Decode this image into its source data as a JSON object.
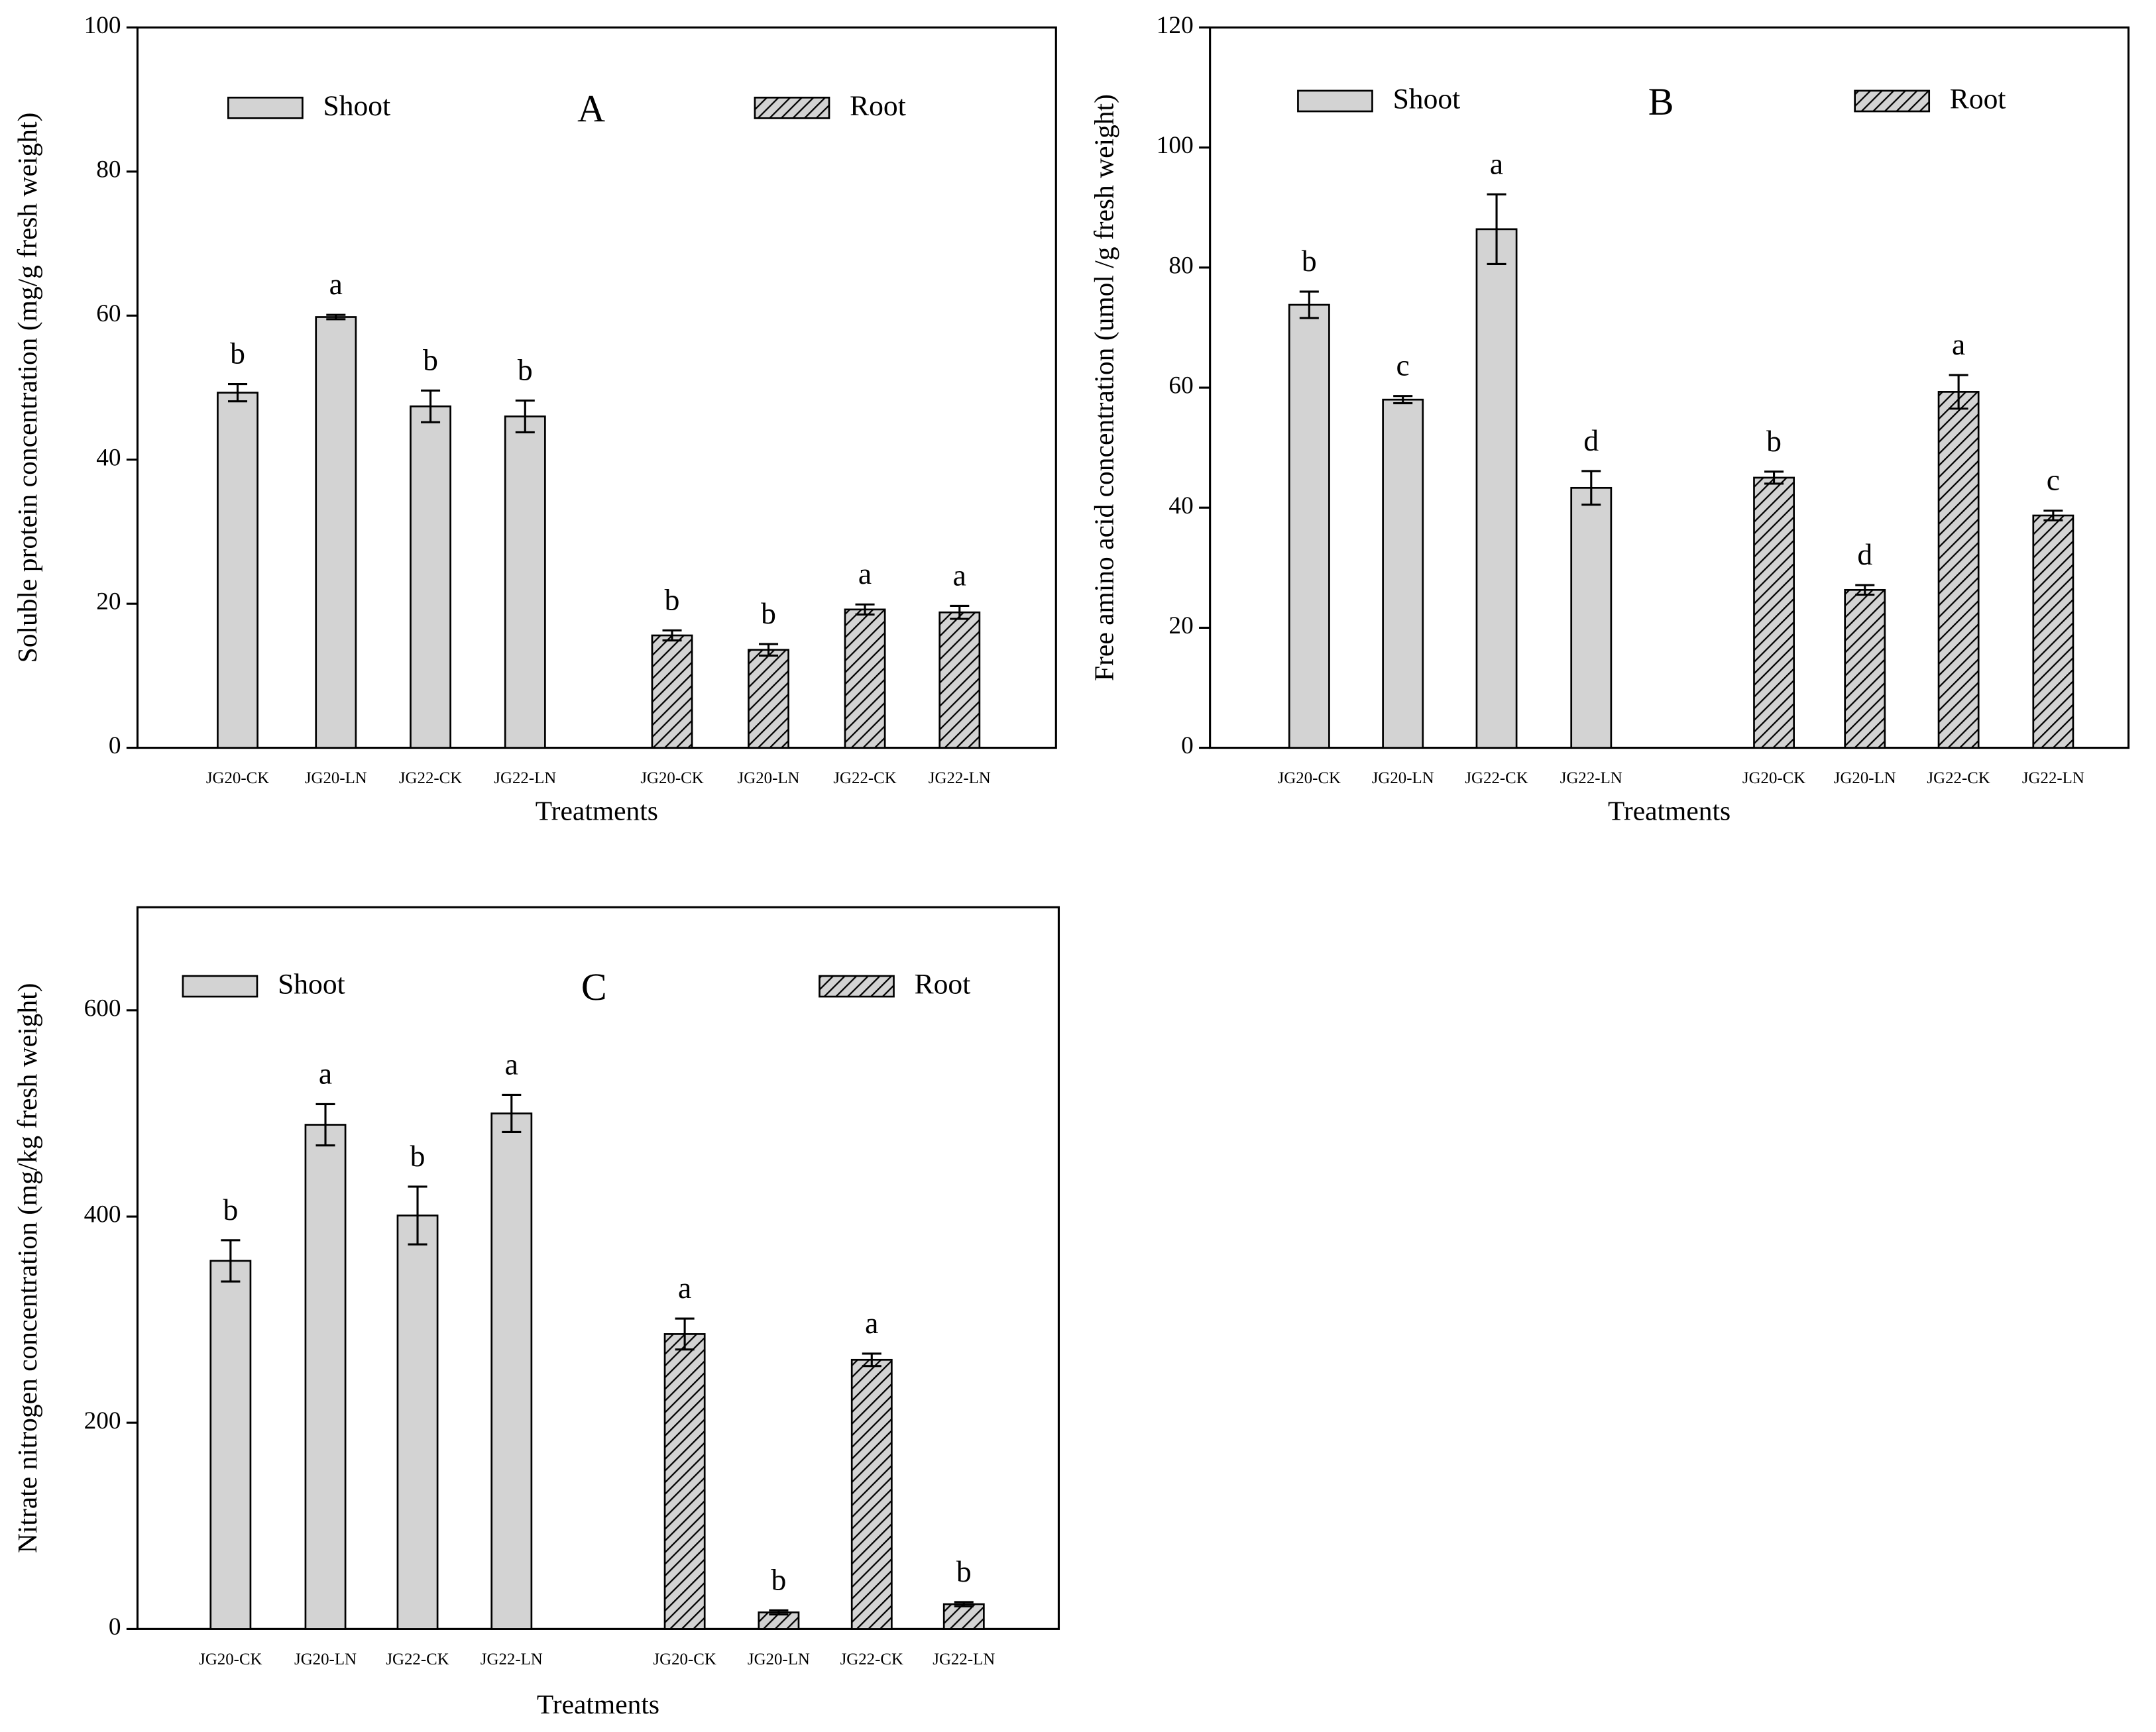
{
  "charts": [
    {
      "type": "bar",
      "panel": "A",
      "ylabel": "Soluble protein concentration (mg/g fresh weight)",
      "xlabel": "Treatments",
      "categories": [
        "JG20-CK",
        "JG20-LN",
        "JG22-CK",
        "JG22-LN",
        "JG20-CK",
        "JG20-LN",
        "JG22-CK",
        "JG22-LN"
      ],
      "ylim": [
        0,
        100
      ],
      "yticks": [
        0,
        20,
        40,
        60,
        80,
        100
      ],
      "series": [
        {
          "name": "Shoot",
          "color": "#d3d3d3",
          "values": [
            49.3,
            59.8,
            47.4,
            46.0,
            null,
            null,
            null,
            null
          ],
          "errors": [
            1.2,
            0.3,
            2.2,
            2.2,
            null,
            null,
            null,
            null
          ],
          "letters": [
            "b",
            "a",
            "b",
            "b",
            null,
            null,
            null,
            null
          ]
        },
        {
          "name": "Root",
          "color": "#d3d3d3",
          "hatch": true,
          "values": [
            null,
            null,
            null,
            null,
            15.6,
            13.6,
            19.2,
            18.8
          ],
          "errors": [
            null,
            null,
            null,
            null,
            0.7,
            0.8,
            0.7,
            0.9
          ],
          "letters": [
            null,
            null,
            null,
            null,
            "b",
            "b",
            "a",
            "a"
          ]
        }
      ]
    },
    {
      "type": "bar",
      "panel": "B",
      "ylabel": "Free amino acid concentration (umol /g fresh weight)",
      "xlabel": "Treatments",
      "categories": [
        "JG20-CK",
        "JG20-LN",
        "JG22-CK",
        "JG22-LN",
        "JG20-CK",
        "JG20-LN",
        "JG22-CK",
        "JG22-LN"
      ],
      "ylim": [
        0,
        120
      ],
      "yticks": [
        0,
        20,
        40,
        60,
        80,
        100,
        120
      ],
      "series": [
        {
          "name": "Shoot",
          "color": "#d3d3d3",
          "values": [
            73.8,
            58.0,
            86.4,
            43.3,
            null,
            null,
            null,
            null
          ],
          "errors": [
            2.2,
            0.6,
            5.8,
            2.8,
            null,
            null,
            null,
            null
          ],
          "letters": [
            "b",
            "c",
            "a",
            "d",
            null,
            null,
            null,
            null
          ]
        },
        {
          "name": "Root",
          "color": "#d3d3d3",
          "hatch": true,
          "values": [
            null,
            null,
            null,
            null,
            45.0,
            26.3,
            59.3,
            38.7
          ],
          "errors": [
            null,
            null,
            null,
            null,
            1.0,
            0.8,
            2.8,
            0.8
          ],
          "letters": [
            null,
            null,
            null,
            null,
            "b",
            "d",
            "a",
            "c"
          ]
        }
      ]
    },
    {
      "type": "bar",
      "panel": "C",
      "ylabel": "Nitrate nitrogen concentration (mg/kg fresh weight)",
      "xlabel": "Treatments",
      "categories": [
        "JG20-CK",
        "JG20-LN",
        "JG22-CK",
        "JG22-LN",
        "JG20-CK",
        "JG20-LN",
        "JG22-CK",
        "JG22-LN"
      ],
      "ylim": [
        0,
        700
      ],
      "yticks": [
        0,
        200,
        400,
        600
      ],
      "series": [
        {
          "name": "Shoot",
          "color": "#d3d3d3",
          "values": [
            357,
            489,
            401,
            500,
            null,
            null,
            null,
            null
          ],
          "errors": [
            20,
            20,
            28,
            18,
            null,
            null,
            null,
            null
          ],
          "letters": [
            "b",
            "a",
            "b",
            "a",
            null,
            null,
            null,
            null
          ]
        },
        {
          "name": "Root",
          "color": "#d3d3d3",
          "hatch": true,
          "values": [
            null,
            null,
            null,
            null,
            286,
            16,
            261,
            24
          ],
          "errors": [
            null,
            null,
            null,
            null,
            15,
            2,
            6,
            2
          ],
          "letters": [
            null,
            null,
            null,
            null,
            "a",
            "b",
            "a",
            "b"
          ]
        }
      ]
    }
  ]
}
